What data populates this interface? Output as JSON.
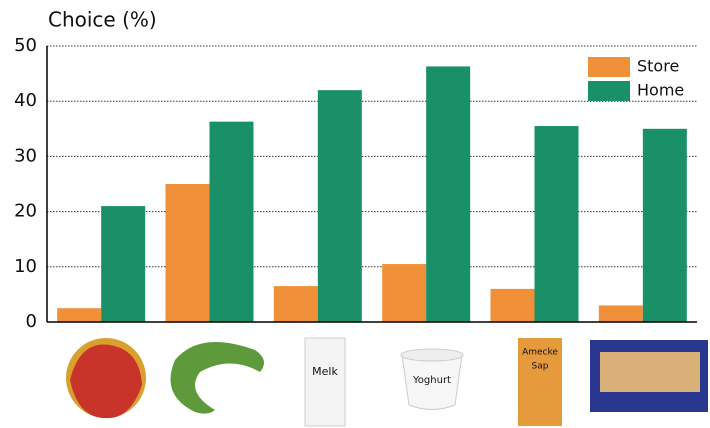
{
  "chart_data": {
    "type": "bar",
    "title": "Choice (%)",
    "categories": [
      null,
      null,
      null,
      null,
      null,
      null
    ],
    "series": [
      {
        "name": "Store",
        "color": "#f0913a",
        "values": [
          2.5,
          25,
          6.5,
          10.5,
          6,
          3
        ]
      },
      {
        "name": "Home",
        "color": "#1a9068",
        "values": [
          21,
          36.3,
          42,
          46.3,
          35.5,
          35
        ]
      }
    ],
    "ylim": [
      0,
      50
    ],
    "yticks": [
      0,
      10,
      20,
      30,
      40,
      50
    ],
    "grid": true,
    "legend": "top-right",
    "product_texts": [
      "Melk",
      "Yoghurt",
      "Amecke",
      "Sap"
    ]
  }
}
